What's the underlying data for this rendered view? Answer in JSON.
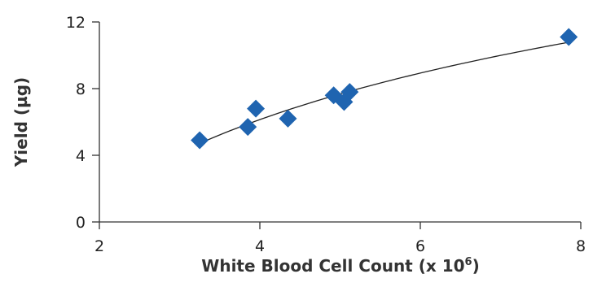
{
  "chart_data": {
    "type": "scatter",
    "title": "",
    "xlabel": "White Blood Cell Count (x 10",
    "xlabel_sup": "6",
    "xlabel_close": ")",
    "ylabel": "Yield (µg)",
    "xlim": [
      2,
      8
    ],
    "ylim": [
      0,
      12
    ],
    "xticks": [
      2,
      4,
      6,
      8
    ],
    "yticks": [
      0,
      4,
      8,
      12
    ],
    "grid": false,
    "marker": "diamond",
    "colors": {
      "marker": "#1f64b0",
      "trendline": "#222222",
      "axis": "#333333"
    },
    "points": [
      {
        "x": 3.25,
        "y": 4.9
      },
      {
        "x": 3.85,
        "y": 5.7
      },
      {
        "x": 3.95,
        "y": 6.8
      },
      {
        "x": 4.35,
        "y": 6.2
      },
      {
        "x": 4.92,
        "y": 7.6
      },
      {
        "x": 5.05,
        "y": 7.2
      },
      {
        "x": 5.12,
        "y": 7.8
      },
      {
        "x": 7.85,
        "y": 11.1
      }
    ],
    "trendline": {
      "type": "logarithmic",
      "x_from": 3.25,
      "x_to": 7.85
    }
  }
}
